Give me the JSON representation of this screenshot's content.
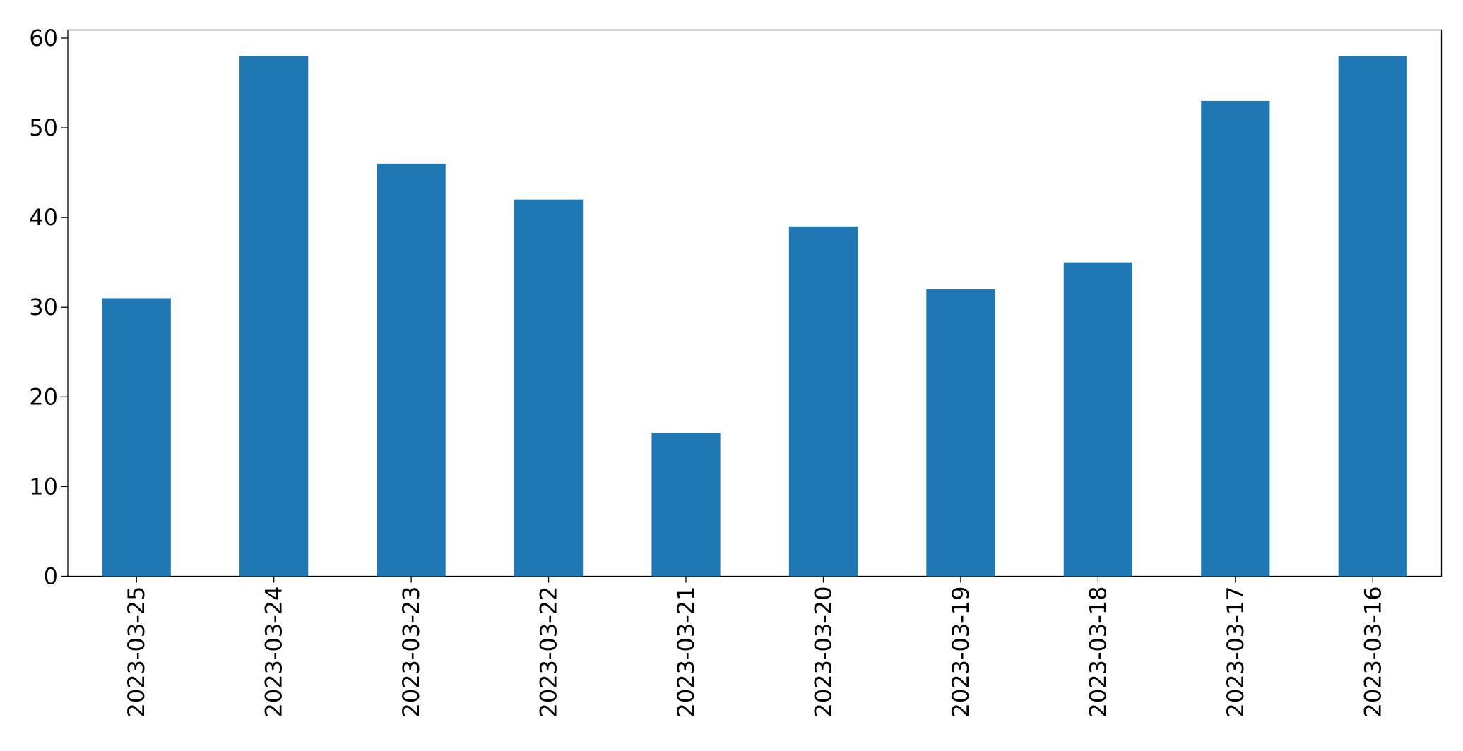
{
  "chart_data": {
    "type": "bar",
    "categories": [
      "2023-03-25",
      "2023-03-24",
      "2023-03-23",
      "2023-03-22",
      "2023-03-21",
      "2023-03-20",
      "2023-03-19",
      "2023-03-18",
      "2023-03-17",
      "2023-03-16"
    ],
    "values": [
      31,
      58,
      46,
      42,
      16,
      39,
      32,
      35,
      53,
      58
    ],
    "color": "#1f77b4",
    "ylim": [
      0,
      60.9
    ],
    "yticks": [
      0,
      10,
      20,
      30,
      40,
      50,
      60
    ],
    "grid": false
  }
}
